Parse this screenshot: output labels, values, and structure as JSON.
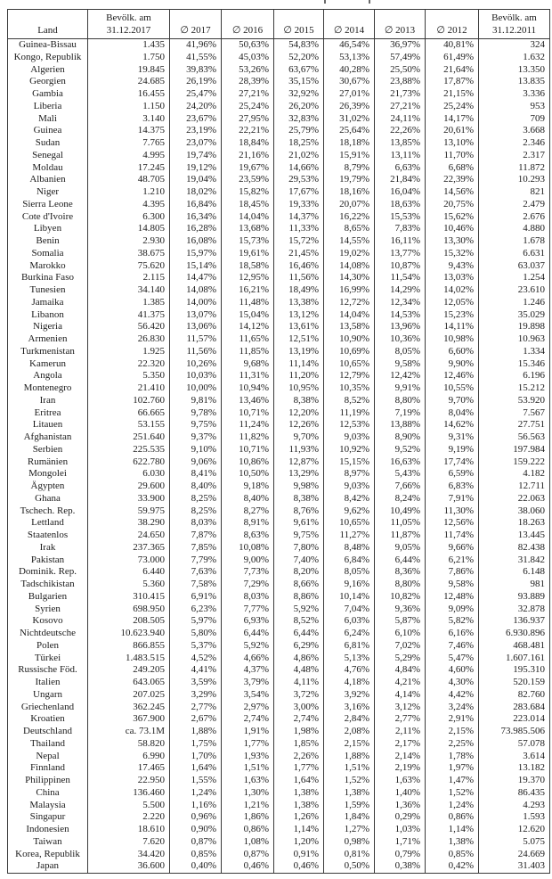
{
  "table": {
    "columns": [
      {
        "top": "",
        "bottom": "Land"
      },
      {
        "top": "Bevölk. am",
        "bottom": "31.12.2017"
      },
      {
        "top": "",
        "bottom": "∅ 2017"
      },
      {
        "top": "",
        "bottom": "∅ 2016"
      },
      {
        "top": "",
        "bottom": "∅ 2015"
      },
      {
        "top": "",
        "bottom": "∅ 2014"
      },
      {
        "top": "",
        "bottom": "∅ 2013"
      },
      {
        "top": "",
        "bottom": "∅ 2012"
      },
      {
        "top": "Bevölk. am",
        "bottom": "31.12.2011"
      }
    ],
    "rows": [
      [
        "Guinea-Bissau",
        "1.435",
        "41,96%",
        "50,63%",
        "54,83%",
        "46,54%",
        "36,97%",
        "40,81%",
        "324"
      ],
      [
        "Kongo, Republik",
        "1.750",
        "41,55%",
        "45,03%",
        "52,20%",
        "53,13%",
        "57,49%",
        "61,49%",
        "1.632"
      ],
      [
        "Algerien",
        "19.845",
        "39,83%",
        "53,26%",
        "63,67%",
        "40,28%",
        "25,50%",
        "21,64%",
        "13.350"
      ],
      [
        "Georgien",
        "24.685",
        "26,19%",
        "28,39%",
        "35,15%",
        "30,67%",
        "23,88%",
        "17,87%",
        "13.835"
      ],
      [
        "Gambia",
        "16.455",
        "25,47%",
        "27,21%",
        "32,92%",
        "27,01%",
        "21,73%",
        "21,15%",
        "3.336"
      ],
      [
        "Liberia",
        "1.150",
        "24,20%",
        "25,24%",
        "26,20%",
        "26,39%",
        "27,21%",
        "25,24%",
        "953"
      ],
      [
        "Mali",
        "3.140",
        "23,67%",
        "27,95%",
        "32,83%",
        "31,02%",
        "24,11%",
        "14,17%",
        "709"
      ],
      [
        "Guinea",
        "14.375",
        "23,19%",
        "22,21%",
        "25,79%",
        "25,64%",
        "22,26%",
        "20,61%",
        "3.668"
      ],
      [
        "Sudan",
        "7.765",
        "23,07%",
        "18,84%",
        "18,25%",
        "18,18%",
        "13,85%",
        "13,10%",
        "2.346"
      ],
      [
        "Senegal",
        "4.995",
        "19,74%",
        "21,16%",
        "21,02%",
        "15,91%",
        "13,11%",
        "11,70%",
        "2.317"
      ],
      [
        "Moldau",
        "17.245",
        "19,12%",
        "19,67%",
        "14,66%",
        "8,79%",
        "6,63%",
        "6,68%",
        "11.872"
      ],
      [
        "Albanien",
        "48.705",
        "19,04%",
        "23,59%",
        "29,53%",
        "19,79%",
        "21,84%",
        "22,39%",
        "10.293"
      ],
      [
        "Niger",
        "1.210",
        "18,02%",
        "15,82%",
        "17,67%",
        "18,16%",
        "16,04%",
        "14,56%",
        "821"
      ],
      [
        "Sierra Leone",
        "4.395",
        "16,84%",
        "18,45%",
        "19,33%",
        "20,07%",
        "18,63%",
        "20,75%",
        "2.479"
      ],
      [
        "Cote d'Ivoire",
        "6.300",
        "16,34%",
        "14,04%",
        "14,37%",
        "16,22%",
        "15,53%",
        "15,62%",
        "2.676"
      ],
      [
        "Libyen",
        "14.805",
        "16,28%",
        "13,68%",
        "11,33%",
        "8,65%",
        "7,83%",
        "10,46%",
        "4.880"
      ],
      [
        "Benin",
        "2.930",
        "16,08%",
        "15,73%",
        "15,72%",
        "14,55%",
        "16,11%",
        "13,30%",
        "1.678"
      ],
      [
        "Somalia",
        "38.675",
        "15,97%",
        "19,61%",
        "21,45%",
        "19,02%",
        "13,77%",
        "15,32%",
        "6.631"
      ],
      [
        "Marokko",
        "75.620",
        "15,14%",
        "18,58%",
        "16,46%",
        "14,08%",
        "10,87%",
        "9,43%",
        "63.037"
      ],
      [
        "Burkina Faso",
        "2.115",
        "14,47%",
        "12,95%",
        "11,56%",
        "14,30%",
        "11,54%",
        "13,03%",
        "1.254"
      ],
      [
        "Tunesien",
        "34.140",
        "14,08%",
        "16,21%",
        "18,49%",
        "16,99%",
        "14,29%",
        "14,02%",
        "23.610"
      ],
      [
        "Jamaika",
        "1.385",
        "14,00%",
        "11,48%",
        "13,38%",
        "12,72%",
        "12,34%",
        "12,05%",
        "1.246"
      ],
      [
        "Libanon",
        "41.375",
        "13,07%",
        "15,04%",
        "13,12%",
        "14,04%",
        "14,53%",
        "15,23%",
        "35.029"
      ],
      [
        "Nigeria",
        "56.420",
        "13,06%",
        "14,12%",
        "13,61%",
        "13,58%",
        "13,96%",
        "14,11%",
        "19.898"
      ],
      [
        "Armenien",
        "26.830",
        "11,57%",
        "11,65%",
        "12,51%",
        "10,90%",
        "10,36%",
        "10,98%",
        "10.963"
      ],
      [
        "Turkmenistan",
        "1.925",
        "11,56%",
        "11,85%",
        "13,19%",
        "10,69%",
        "8,05%",
        "6,60%",
        "1.334"
      ],
      [
        "Kamerun",
        "22.320",
        "10,26%",
        "9,68%",
        "11,14%",
        "10,65%",
        "9,58%",
        "9,90%",
        "15.346"
      ],
      [
        "Angola",
        "5.350",
        "10,03%",
        "11,31%",
        "11,20%",
        "12,79%",
        "12,42%",
        "12,46%",
        "6.196"
      ],
      [
        "Montenegro",
        "21.410",
        "10,00%",
        "10,94%",
        "10,95%",
        "10,35%",
        "9,91%",
        "10,55%",
        "15.212"
      ],
      [
        "Iran",
        "102.760",
        "9,81%",
        "13,46%",
        "8,38%",
        "8,52%",
        "8,80%",
        "9,70%",
        "53.920"
      ],
      [
        "Eritrea",
        "66.665",
        "9,78%",
        "10,71%",
        "12,20%",
        "11,19%",
        "7,19%",
        "8,04%",
        "7.567"
      ],
      [
        "Litauen",
        "53.155",
        "9,75%",
        "11,24%",
        "12,26%",
        "12,53%",
        "13,88%",
        "14,62%",
        "27.751"
      ],
      [
        "Afghanistan",
        "251.640",
        "9,37%",
        "11,82%",
        "9,70%",
        "9,03%",
        "8,90%",
        "9,31%",
        "56.563"
      ],
      [
        "Serbien",
        "225.535",
        "9,10%",
        "10,71%",
        "11,93%",
        "10,92%",
        "9,52%",
        "9,19%",
        "197.984"
      ],
      [
        "Rumänien",
        "622.780",
        "9,06%",
        "10,86%",
        "12,87%",
        "15,15%",
        "16,63%",
        "17,74%",
        "159.222"
      ],
      [
        "Mongolei",
        "6.030",
        "8,41%",
        "10,50%",
        "13,29%",
        "8,97%",
        "5,43%",
        "6,59%",
        "4.182"
      ],
      [
        "Ägypten",
        "29.600",
        "8,40%",
        "9,18%",
        "9,98%",
        "9,03%",
        "7,66%",
        "6,83%",
        "12.711"
      ],
      [
        "Ghana",
        "33.900",
        "8,25%",
        "8,40%",
        "8,38%",
        "8,42%",
        "8,24%",
        "7,91%",
        "22.063"
      ],
      [
        "Tschech. Rep.",
        "59.975",
        "8,25%",
        "8,27%",
        "8,76%",
        "9,62%",
        "10,49%",
        "11,30%",
        "38.060"
      ],
      [
        "Lettland",
        "38.290",
        "8,03%",
        "8,91%",
        "9,61%",
        "10,65%",
        "11,05%",
        "12,56%",
        "18.263"
      ],
      [
        "Staatenlos",
        "24.650",
        "7,87%",
        "8,63%",
        "9,75%",
        "11,27%",
        "11,87%",
        "11,74%",
        "13.445"
      ],
      [
        "Irak",
        "237.365",
        "7,85%",
        "10,08%",
        "7,80%",
        "8,48%",
        "9,05%",
        "9,66%",
        "82.438"
      ],
      [
        "Pakistan",
        "73.000",
        "7,79%",
        "9,00%",
        "7,40%",
        "6,84%",
        "6,44%",
        "6,21%",
        "31.842"
      ],
      [
        "Dominik. Rep.",
        "6.440",
        "7,63%",
        "7,73%",
        "8,20%",
        "8,05%",
        "8,36%",
        "7,86%",
        "6.148"
      ],
      [
        "Tadschikistan",
        "5.360",
        "7,58%",
        "7,29%",
        "8,66%",
        "9,16%",
        "8,80%",
        "9,58%",
        "981"
      ],
      [
        "Bulgarien",
        "310.415",
        "6,91%",
        "8,03%",
        "8,86%",
        "10,14%",
        "10,82%",
        "12,48%",
        "93.889"
      ],
      [
        "Syrien",
        "698.950",
        "6,23%",
        "7,77%",
        "5,92%",
        "7,04%",
        "9,36%",
        "9,09%",
        "32.878"
      ],
      [
        "Kosovo",
        "208.505",
        "5,97%",
        "6,93%",
        "8,52%",
        "6,03%",
        "5,87%",
        "5,82%",
        "136.937"
      ],
      [
        "Nichtdeutsche",
        "10.623.940",
        "5,80%",
        "6,44%",
        "6,44%",
        "6,24%",
        "6,10%",
        "6,16%",
        "6.930.896"
      ],
      [
        "Polen",
        "866.855",
        "5,37%",
        "5,92%",
        "6,29%",
        "6,81%",
        "7,02%",
        "7,46%",
        "468.481"
      ],
      [
        "Türkei",
        "1.483.515",
        "4,52%",
        "4,66%",
        "4,86%",
        "5,13%",
        "5,29%",
        "5,47%",
        "1.607.161"
      ],
      [
        "Russische Föd.",
        "249.205",
        "4,41%",
        "4,37%",
        "4,48%",
        "4,76%",
        "4,84%",
        "4,60%",
        "195.310"
      ],
      [
        "Italien",
        "643.065",
        "3,59%",
        "3,79%",
        "4,11%",
        "4,18%",
        "4,21%",
        "4,30%",
        "520.159"
      ],
      [
        "Ungarn",
        "207.025",
        "3,29%",
        "3,54%",
        "3,72%",
        "3,92%",
        "4,14%",
        "4,42%",
        "82.760"
      ],
      [
        "Griechenland",
        "362.245",
        "2,77%",
        "2,97%",
        "3,00%",
        "3,16%",
        "3,12%",
        "3,24%",
        "283.684"
      ],
      [
        "Kroatien",
        "367.900",
        "2,67%",
        "2,74%",
        "2,74%",
        "2,84%",
        "2,77%",
        "2,91%",
        "223.014"
      ],
      [
        "Deutschland",
        "ca. 73.1M",
        "1,88%",
        "1,91%",
        "1,98%",
        "2,08%",
        "2,11%",
        "2,15%",
        "73.985.506"
      ],
      [
        "Thailand",
        "58.820",
        "1,75%",
        "1,77%",
        "1,85%",
        "2,15%",
        "2,17%",
        "2,25%",
        "57.078"
      ],
      [
        "Nepal",
        "6.990",
        "1,70%",
        "1,93%",
        "2,26%",
        "1,88%",
        "2,14%",
        "1,78%",
        "3.614"
      ],
      [
        "Finnland",
        "17.465",
        "1,64%",
        "1,51%",
        "1,77%",
        "1,51%",
        "2,19%",
        "1,97%",
        "13.182"
      ],
      [
        "Philippinen",
        "22.950",
        "1,55%",
        "1,63%",
        "1,64%",
        "1,52%",
        "1,63%",
        "1,47%",
        "19.370"
      ],
      [
        "China",
        "136.460",
        "1,24%",
        "1,30%",
        "1,38%",
        "1,38%",
        "1,40%",
        "1,52%",
        "86.435"
      ],
      [
        "Malaysia",
        "5.500",
        "1,16%",
        "1,21%",
        "1,38%",
        "1,59%",
        "1,36%",
        "1,24%",
        "4.293"
      ],
      [
        "Singapur",
        "2.220",
        "0,96%",
        "1,86%",
        "1,26%",
        "1,84%",
        "0,29%",
        "0,86%",
        "1.593"
      ],
      [
        "Indonesien",
        "18.610",
        "0,90%",
        "0,86%",
        "1,14%",
        "1,27%",
        "1,03%",
        "1,14%",
        "12.620"
      ],
      [
        "Taiwan",
        "7.620",
        "0,87%",
        "1,08%",
        "1,20%",
        "0,98%",
        "1,71%",
        "1,38%",
        "5.075"
      ],
      [
        "Korea, Republik",
        "34.420",
        "0,85%",
        "0,87%",
        "0,91%",
        "0,81%",
        "0,79%",
        "0,85%",
        "24.669"
      ],
      [
        "Japan",
        "36.600",
        "0,40%",
        "0,46%",
        "0,46%",
        "0,50%",
        "0,38%",
        "0,42%",
        "31.403"
      ]
    ]
  },
  "colors": {
    "page_background": "#ffffff",
    "text": "#1b1b1b",
    "border": "#3a3a3a"
  }
}
